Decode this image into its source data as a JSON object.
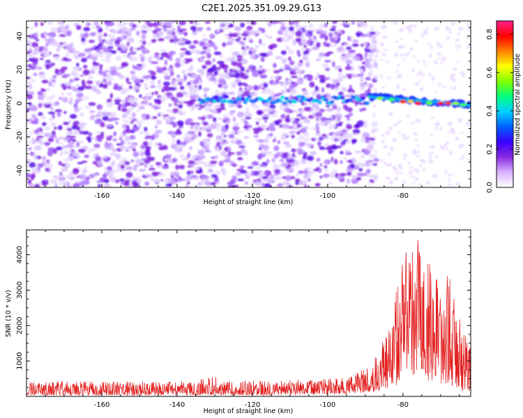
{
  "figure": {
    "title": "C2E1.2025.351.09.29.G13"
  },
  "chart_data": [
    {
      "type": "heatmap",
      "title": "C2E1.2025.351.09.29.G13",
      "xlabel": "Height of straight line (km)",
      "ylabel": "Frequency (Hz)",
      "xlim": [
        -180,
        -62
      ],
      "ylim": [
        -50,
        49
      ],
      "x_ticks": [
        -160,
        -140,
        -120,
        -100,
        -80
      ],
      "y_ticks": [
        -40,
        -20,
        0,
        20,
        40
      ],
      "colorbar": {
        "label": "Normalized spectral amplitude",
        "range": [
          0,
          0.87
        ],
        "ticks": [
          0.0,
          0.2,
          0.4,
          0.6,
          0.8
        ],
        "colors": [
          "#ffffff",
          "#d9b3ff",
          "#8a2be2",
          "#3a00ff",
          "#0060ff",
          "#00d0ff",
          "#00ff80",
          "#80ff00",
          "#ffff00",
          "#ff8000",
          "#ff0000",
          "#ff2090"
        ]
      },
      "features": {
        "noise_region_x": [
          -180,
          -89
        ],
        "signal_band_start_x": -134,
        "signal_band_frequency_hz": 2,
        "strong_tone_x": [
          -89,
          -62
        ],
        "strong_tone_frequency_hz": [
          4,
          -1
        ]
      }
    },
    {
      "type": "line",
      "title": "",
      "xlabel": "Height of straight line (km)",
      "ylabel": "SNR (10 * v/v)",
      "xlim": [
        -180,
        -62
      ],
      "ylim": [
        0,
        4700
      ],
      "x_ticks": [
        -160,
        -140,
        -120,
        -100,
        -80
      ],
      "y_ticks": [
        1000,
        2000,
        3000,
        4000
      ],
      "series": [
        {
          "name": "SNR",
          "color": "#e32020",
          "profile": {
            "x": [
              -180,
              -135,
              -131,
              -128,
              -110,
              -95,
              -90,
              -87,
              -85,
              -83,
              -81,
              -79,
              -77,
              -76,
              -75,
              -73,
              -71,
              -69,
              -68,
              -66,
              -64,
              -62
            ],
            "peak": [
              420,
              420,
              650,
              430,
              460,
              520,
              800,
              1200,
              1900,
              2000,
              3600,
              4300,
              4000,
              4700,
              3500,
              3800,
              4050,
              2800,
              3700,
              2500,
              1900,
              1700
            ],
            "floor": [
              30,
              30,
              40,
              30,
              40,
              60,
              110,
              150,
              200,
              250,
              350,
              500,
              450,
              600,
              400,
              450,
              400,
              300,
              350,
              250,
              150,
              150
            ]
          }
        }
      ]
    }
  ]
}
